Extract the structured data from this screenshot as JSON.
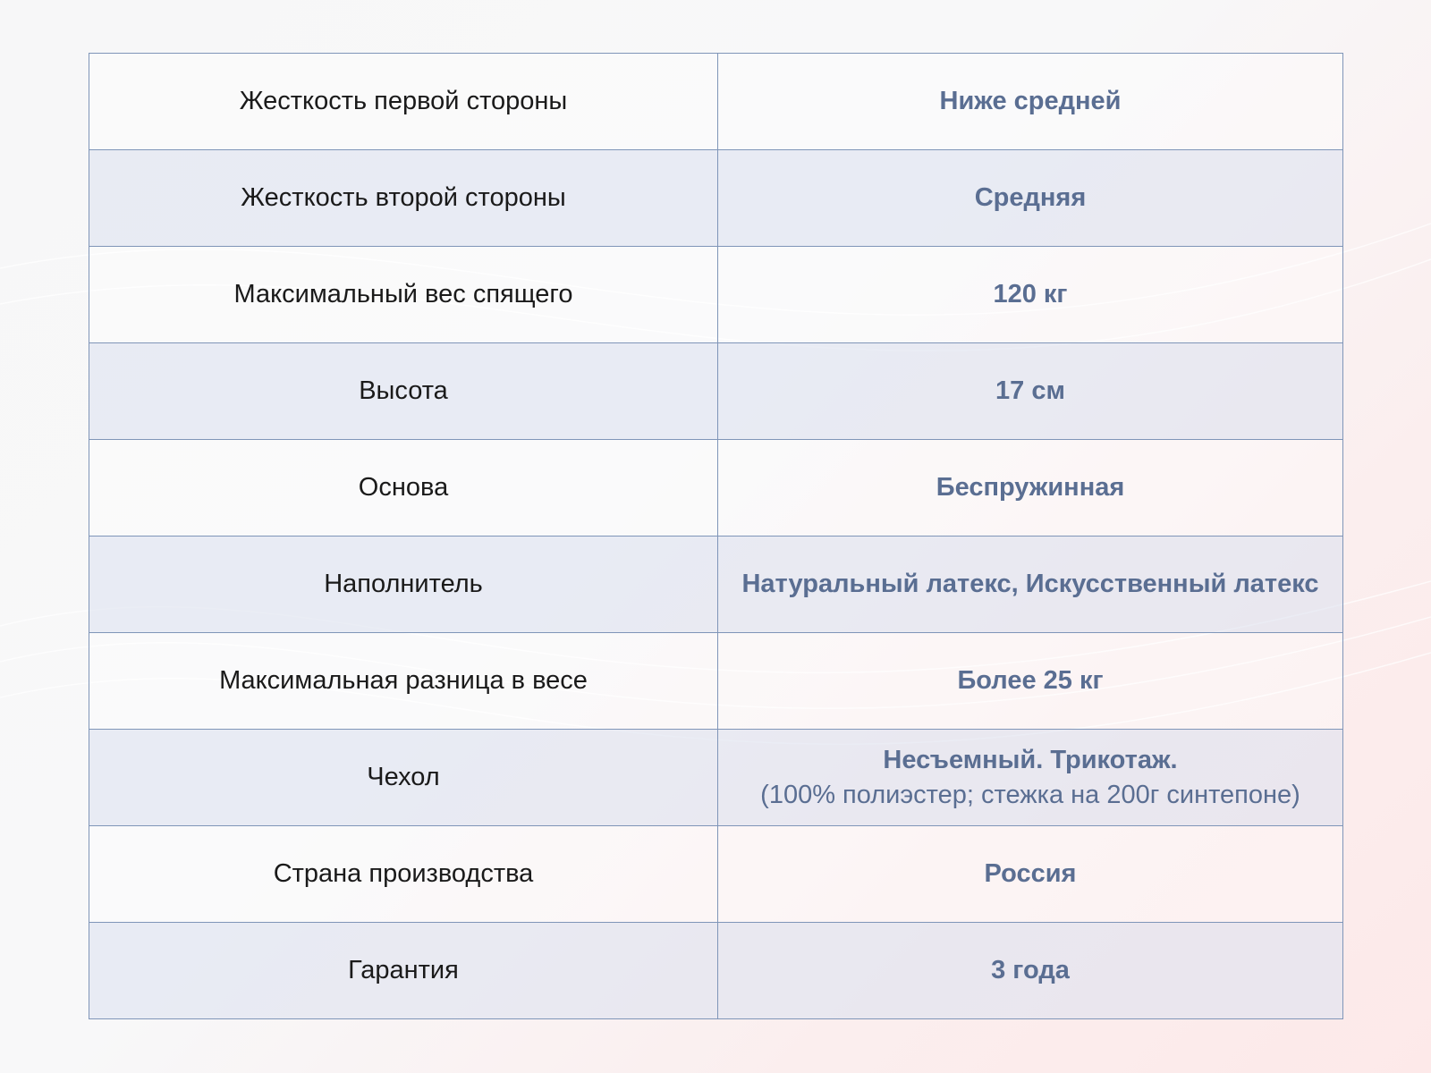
{
  "colors": {
    "border": "#7f95b8",
    "value_text": "#5a6e92",
    "label_text": "#1a1a1a",
    "stripe": "#dee3f0"
  },
  "rows": [
    {
      "label": "Жесткость первой стороны",
      "value": "Ниже средней"
    },
    {
      "label": "Жесткость второй стороны",
      "value": "Средняя"
    },
    {
      "label": "Максимальный вес спящего",
      "value": "120 кг"
    },
    {
      "label": "Высота",
      "value": "17 см"
    },
    {
      "label": "Основа",
      "value": "Беспружинная"
    },
    {
      "label": "Наполнитель",
      "value": "Натуральный латекс, Искусственный латекс"
    },
    {
      "label": "Максимальная разница в весе",
      "value": "Более 25 кг"
    },
    {
      "label": "Чехол",
      "value": "Несъемный. Трикотаж.",
      "note": "(100% полиэстер; стежка на 200г синтепоне)"
    },
    {
      "label": "Страна производства",
      "value": "Россия"
    },
    {
      "label": "Гарантия",
      "value": "3 года"
    }
  ]
}
